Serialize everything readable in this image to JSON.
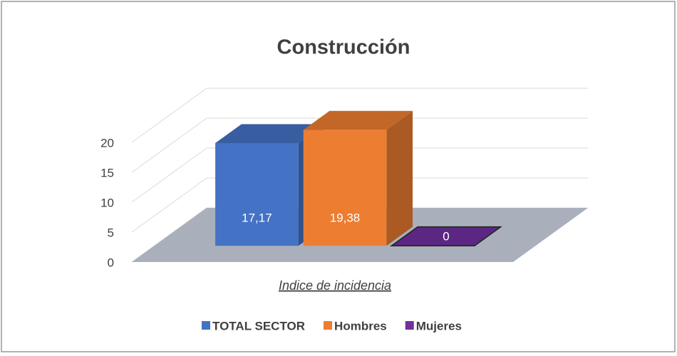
{
  "chart_data": {
    "type": "bar3d",
    "title": "Construcción",
    "x_label": "Indice de incidencia",
    "categories": [
      "Indice de incidencia"
    ],
    "series": [
      {
        "name": "TOTAL SECTOR",
        "color": "#4472c4",
        "values": [
          17.17
        ],
        "value_labels": [
          "17,17"
        ]
      },
      {
        "name": "Hombres",
        "color": "#ed7d31",
        "values": [
          19.38
        ],
        "value_labels": [
          "19,38"
        ]
      },
      {
        "name": "Mujeres",
        "color": "#7030a0",
        "values": [
          0
        ],
        "value_labels": [
          "0"
        ]
      }
    ],
    "ylim": [
      0,
      20
    ],
    "yticks": [
      0,
      5,
      10,
      15,
      20
    ],
    "grid": true,
    "legend": "bottom"
  }
}
